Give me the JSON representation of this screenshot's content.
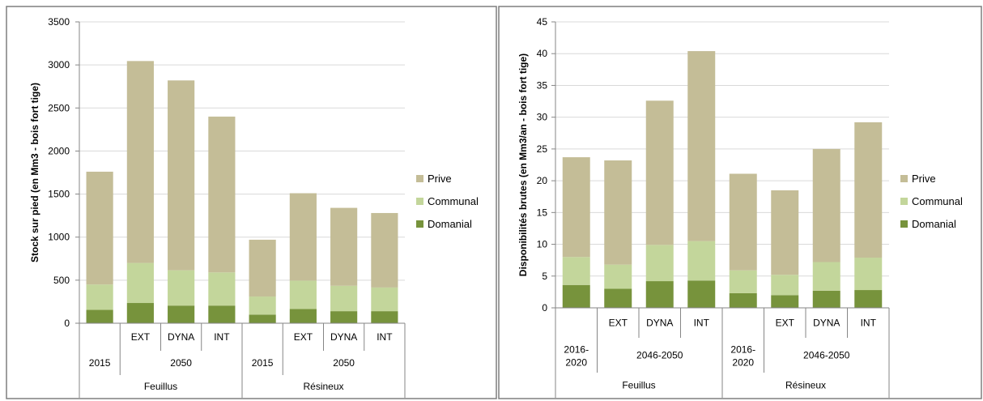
{
  "colors": {
    "domanial": "#77933c",
    "communal": "#c3d69b",
    "prive": "#c4bd97",
    "grid": "#d9d9d9",
    "axis": "#868686",
    "frame": "#7f7f7f",
    "text": "#000000"
  },
  "chart_data": [
    {
      "type": "bar",
      "stacked": true,
      "ylabel": "Stock sur pied (en Mm3 - bois fort tige)",
      "ylim": [
        0,
        3500
      ],
      "yticks": [
        0,
        500,
        1000,
        1500,
        2000,
        2500,
        3000,
        3500
      ],
      "grid": true,
      "legend_position": "right",
      "categories_level1": [
        "",
        "EXT",
        "DYNA",
        "INT",
        "",
        "EXT",
        "DYNA",
        "INT"
      ],
      "categories_level2": [
        {
          "label": "2015",
          "span": 1
        },
        {
          "label": "2050",
          "span": 3
        },
        {
          "label": "2015",
          "span": 1
        },
        {
          "label": "2050",
          "span": 3
        }
      ],
      "categories_level3": [
        {
          "label": "Feuillus",
          "span": 4
        },
        {
          "label": "Résineux",
          "span": 4
        }
      ],
      "series": [
        {
          "name": "Domanial",
          "color_key": "domanial",
          "values": [
            155,
            235,
            205,
            205,
            100,
            165,
            140,
            140
          ]
        },
        {
          "name": "Communal",
          "color_key": "communal",
          "values": [
            295,
            465,
            410,
            385,
            210,
            330,
            295,
            275
          ]
        },
        {
          "name": "Prive",
          "color_key": "prive",
          "values": [
            1310,
            2345,
            2205,
            1810,
            660,
            1015,
            905,
            865
          ]
        }
      ]
    },
    {
      "type": "bar",
      "stacked": true,
      "ylabel": "Disponibilités brutes (en Mm3/an - bois fort tige)",
      "ylim": [
        0,
        45
      ],
      "yticks": [
        0,
        5,
        10,
        15,
        20,
        25,
        30,
        35,
        40,
        45
      ],
      "grid": true,
      "legend_position": "right",
      "categories_level1": [
        "",
        "EXT",
        "DYNA",
        "INT",
        "",
        "EXT",
        "DYNA",
        "INT"
      ],
      "categories_level2": [
        {
          "label": "2016-2020",
          "span": 1
        },
        {
          "label": "2046-2050",
          "span": 3
        },
        {
          "label": "2016-2020",
          "span": 1
        },
        {
          "label": "2046-2050",
          "span": 3
        }
      ],
      "categories_level3": [
        {
          "label": "Feuillus",
          "span": 4
        },
        {
          "label": "Résineux",
          "span": 4
        }
      ],
      "series": [
        {
          "name": "Domanial",
          "color_key": "domanial",
          "values": [
            3.6,
            3.0,
            4.2,
            4.3,
            2.3,
            2.0,
            2.7,
            2.8
          ]
        },
        {
          "name": "Communal",
          "color_key": "communal",
          "values": [
            4.4,
            3.8,
            5.7,
            6.2,
            3.6,
            3.2,
            4.5,
            5.1
          ]
        },
        {
          "name": "Prive",
          "color_key": "prive",
          "values": [
            15.7,
            16.4,
            22.7,
            29.9,
            15.2,
            13.3,
            17.8,
            21.3
          ]
        }
      ]
    }
  ]
}
